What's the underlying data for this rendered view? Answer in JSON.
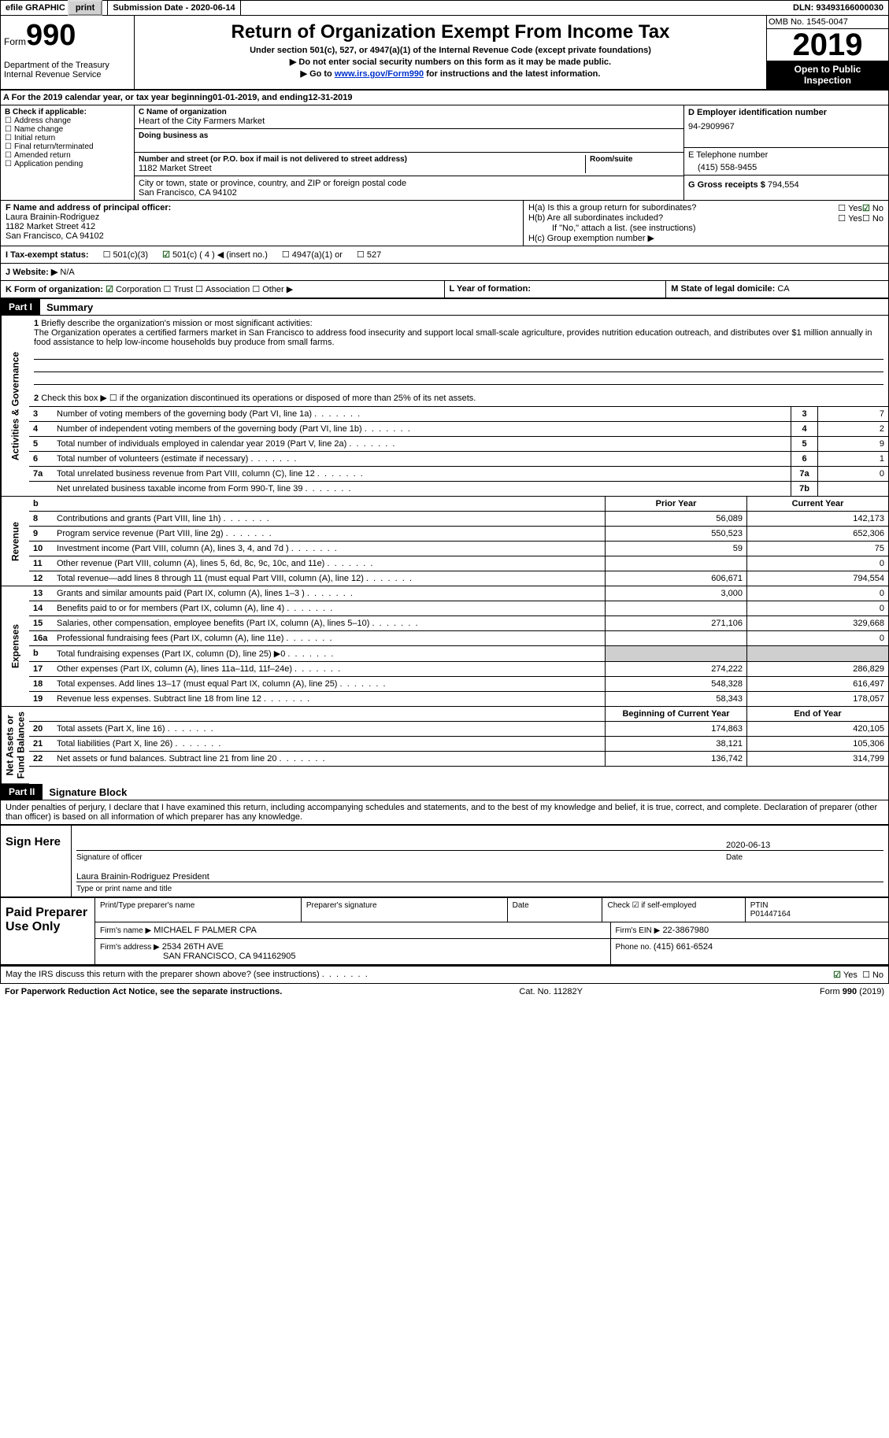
{
  "top": {
    "efile": "efile GRAPHIC",
    "print": "print",
    "sub_label": "Submission Date - ",
    "sub_date": "2020-06-14",
    "dln_label": "DLN: ",
    "dln": "93493166000030"
  },
  "header": {
    "form_word": "Form",
    "form_no": "990",
    "dept": "Department of the Treasury\nInternal Revenue Service",
    "title": "Return of Organization Exempt From Income Tax",
    "sub1": "Under section 501(c), 527, or 4947(a)(1) of the Internal Revenue Code (except private foundations)",
    "sub2": "Do not enter social security numbers on this form as it may be made public.",
    "sub3a": "Go to ",
    "sub3_link": "www.irs.gov/Form990",
    "sub3b": " for instructions and the latest information.",
    "omb": "OMB No. 1545-0047",
    "year": "2019",
    "inspect": "Open to Public Inspection"
  },
  "calyear": {
    "a": "A For the 2019 calendar year, or tax year beginning ",
    "b": "01-01-2019",
    "c": " , and ending ",
    "d": "12-31-2019"
  },
  "b": {
    "label": "B Check if applicable:",
    "addr": "Address change",
    "name": "Name change",
    "init": "Initial return",
    "final": "Final return/terminated",
    "amend": "Amended return",
    "app": "Application pending"
  },
  "c": {
    "label": "C Name of organization",
    "name": "Heart of the City Farmers Market",
    "dba": "Doing business as",
    "street_label": "Number and street (or P.O. box if mail is not delivered to street address)",
    "room_label": "Room/suite",
    "street": "1182 Market Street",
    "city_label": "City or town, state or province, country, and ZIP or foreign postal code",
    "city": "San Francisco, CA  94102"
  },
  "d": {
    "label": "D Employer identification number",
    "val": "94-2909967"
  },
  "e": {
    "label": "E Telephone number",
    "val": "(415) 558-9455"
  },
  "g": {
    "label": "G Gross receipts $ ",
    "val": "794,554"
  },
  "f": {
    "label": "F  Name and address of principal officer:",
    "name": "Laura Brainin-Rodriguez",
    "street": "1182 Market Street 412",
    "city": "San Francisco, CA  94102"
  },
  "h": {
    "a": "H(a)  Is this a group return for subordinates?",
    "b": "H(b)  Are all subordinates included?",
    "note": "If \"No,\" attach a list. (see instructions)",
    "c": "H(c)  Group exemption number ▶",
    "yes": "Yes",
    "no": "No"
  },
  "i": {
    "label": "I   Tax-exempt status:",
    "o1": "501(c)(3)",
    "o2": "501(c) ( 4 ) ◀ (insert no.)",
    "o3": "4947(a)(1) or",
    "o4": "527"
  },
  "j": {
    "label": "J   Website: ▶",
    "val": "N/A"
  },
  "k": {
    "label": "K Form of organization:",
    "corp": "Corporation",
    "trust": "Trust",
    "assoc": "Association",
    "other": "Other ▶"
  },
  "l": {
    "label": "L Year of formation:"
  },
  "m": {
    "label": "M State of legal domicile: ",
    "val": "CA"
  },
  "part1": {
    "num": "Part I",
    "title": "Summary"
  },
  "vlabels": {
    "ag": "Activities & Governance",
    "rev": "Revenue",
    "exp": "Expenses",
    "na": "Net Assets or\nFund Balances"
  },
  "lines": {
    "l1_label": "Briefly describe the organization's mission or most significant activities:",
    "l1_text": "The Organization operates a certified farmers market in San Francisco to address food insecurity and support local small-scale agriculture, provides nutrition education outreach, and distributes over $1 million annually in food assistance to help low-income households buy produce from small farms.",
    "l2": "Check this box ▶ ☐  if the organization discontinued its operations or disposed of more than 25% of its net assets.",
    "l3": "Number of voting members of the governing body (Part VI, line 1a)",
    "v3": "7",
    "l4": "Number of independent voting members of the governing body (Part VI, line 1b)",
    "v4": "2",
    "l5": "Total number of individuals employed in calendar year 2019 (Part V, line 2a)",
    "v5": "9",
    "l6": "Total number of volunteers (estimate if necessary)",
    "v6": "1",
    "l7a": "Total unrelated business revenue from Part VIII, column (C), line 12",
    "v7a": "0",
    "l7b": "Net unrelated business taxable income from Form 990-T, line 39",
    "v7b": ""
  },
  "tbl": {
    "py": "Prior Year",
    "cy": "Current Year",
    "boy": "Beginning of Current Year",
    "eoy": "End of Year",
    "rows": [
      {
        "n": "8",
        "t": "Contributions and grants (Part VIII, line 1h)",
        "p": "56,089",
        "c": "142,173"
      },
      {
        "n": "9",
        "t": "Program service revenue (Part VIII, line 2g)",
        "p": "550,523",
        "c": "652,306"
      },
      {
        "n": "10",
        "t": "Investment income (Part VIII, column (A), lines 3, 4, and 7d )",
        "p": "59",
        "c": "75"
      },
      {
        "n": "11",
        "t": "Other revenue (Part VIII, column (A), lines 5, 6d, 8c, 9c, 10c, and 11e)",
        "p": "",
        "c": "0"
      },
      {
        "n": "12",
        "t": "Total revenue—add lines 8 through 11 (must equal Part VIII, column (A), line 12)",
        "p": "606,671",
        "c": "794,554"
      },
      {
        "n": "13",
        "t": "Grants and similar amounts paid (Part IX, column (A), lines 1–3 )",
        "p": "3,000",
        "c": "0"
      },
      {
        "n": "14",
        "t": "Benefits paid to or for members (Part IX, column (A), line 4)",
        "p": "",
        "c": "0"
      },
      {
        "n": "15",
        "t": "Salaries, other compensation, employee benefits (Part IX, column (A), lines 5–10)",
        "p": "271,106",
        "c": "329,668"
      },
      {
        "n": "16a",
        "t": "Professional fundraising fees (Part IX, column (A), line 11e)",
        "p": "",
        "c": "0"
      },
      {
        "n": "b",
        "t": "Total fundraising expenses (Part IX, column (D), line 25) ▶0",
        "p": "grey",
        "c": "grey"
      },
      {
        "n": "17",
        "t": "Other expenses (Part IX, column (A), lines 11a–11d, 11f–24e)",
        "p": "274,222",
        "c": "286,829"
      },
      {
        "n": "18",
        "t": "Total expenses. Add lines 13–17 (must equal Part IX, column (A), line 25)",
        "p": "548,328",
        "c": "616,497"
      },
      {
        "n": "19",
        "t": "Revenue less expenses. Subtract line 18 from line 12",
        "p": "58,343",
        "c": "178,057"
      },
      {
        "n": "20",
        "t": "Total assets (Part X, line 16)",
        "p": "174,863",
        "c": "420,105"
      },
      {
        "n": "21",
        "t": "Total liabilities (Part X, line 26)",
        "p": "38,121",
        "c": "105,306"
      },
      {
        "n": "22",
        "t": "Net assets or fund balances. Subtract line 21 from line 20",
        "p": "136,742",
        "c": "314,799"
      }
    ]
  },
  "part2": {
    "num": "Part II",
    "title": "Signature Block"
  },
  "sig": {
    "decl": "Under penalties of perjury, I declare that I have examined this return, including accompanying schedules and statements, and to the best of my knowledge and belief, it is true, correct, and complete. Declaration of preparer (other than officer) is based on all information of which preparer has any knowledge.",
    "signhere": "Sign Here",
    "sigoff": "Signature of officer",
    "date": "Date",
    "date_val": "2020-06-13",
    "name": "Laura Brainin-Rodriguez  President",
    "nametitle": "Type or print name and title"
  },
  "prep": {
    "label": "Paid Preparer Use Only",
    "pt_name": "Print/Type preparer's name",
    "pt_sig": "Preparer's signature",
    "pt_date": "Date",
    "check": "Check ☑ if self-employed",
    "ptin_l": "PTIN",
    "ptin": "P01447164",
    "firm_l": "Firm's name   ▶",
    "firm": "MICHAEL F PALMER CPA",
    "ein_l": "Firm's EIN ▶",
    "ein": "22-3867980",
    "addr_l": "Firm's address ▶",
    "addr": "2534 26TH AVE",
    "addr2": "SAN FRANCISCO, CA  941162905",
    "phone_l": "Phone no. ",
    "phone": "(415) 661-6524"
  },
  "may": {
    "text": "May the IRS discuss this return with the preparer shown above? (see instructions)",
    "yes": "Yes",
    "no": "No"
  },
  "foot": {
    "l": "For Paperwork Reduction Act Notice, see the separate instructions.",
    "m": "Cat. No. 11282Y",
    "r": "Form 990 (2019)"
  }
}
